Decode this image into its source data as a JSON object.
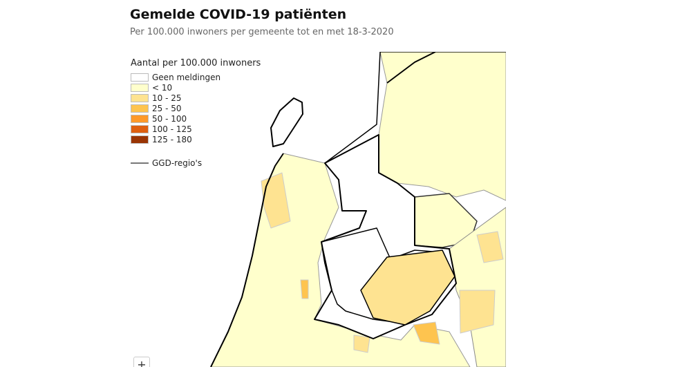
{
  "header": {
    "title": "Gemelde COVID-19 patiënten",
    "subtitle": "Per 100.000 inwoners per gemeente tot en met 18-3-2020"
  },
  "legend": {
    "title": "Aantal per 100.000 inwoners",
    "items": [
      {
        "label": "Geen meldingen",
        "color": "#ffffff"
      },
      {
        "label": "< 10",
        "color": "#ffffcc"
      },
      {
        "label": "10 - 25",
        "color": "#fee391"
      },
      {
        "label": "25 - 50",
        "color": "#fec44f"
      },
      {
        "label": "50 - 100",
        "color": "#fe9929"
      },
      {
        "label": "100 - 125",
        "color": "#de5f0f"
      },
      {
        "label": "125 - 180",
        "color": "#993404"
      }
    ],
    "boundary": "GGD-regio's"
  },
  "controls": {
    "zoom_in": "+"
  }
}
